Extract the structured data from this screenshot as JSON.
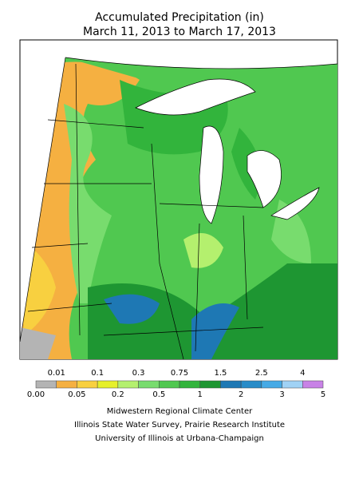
{
  "header": {
    "title": "Accumulated Precipitation (in)",
    "subtitle": "March 11, 2013 to March 17, 2013"
  },
  "legend": {
    "labels": [
      "0.00",
      "0.01",
      "0.05",
      "0.1",
      "0.2",
      "0.3",
      "0.5",
      "0.75",
      "1",
      "1.5",
      "2",
      "2.5",
      "3",
      "4",
      "5"
    ],
    "colors": [
      "#b4b4b4",
      "#f5b041",
      "#f8d040",
      "#e6f02a",
      "#b4f06e",
      "#78dc6e",
      "#50c850",
      "#32b43c",
      "#1e9632",
      "#1e78b4",
      "#288cc8",
      "#46aae6",
      "#a0d2f5",
      "#c882e6"
    ]
  },
  "credits": [
    "Midwestern Regional Climate Center",
    "Illinois State Water Survey, Prairie Research Institute",
    "University of Illinois at Urbana-Champaign"
  ]
}
